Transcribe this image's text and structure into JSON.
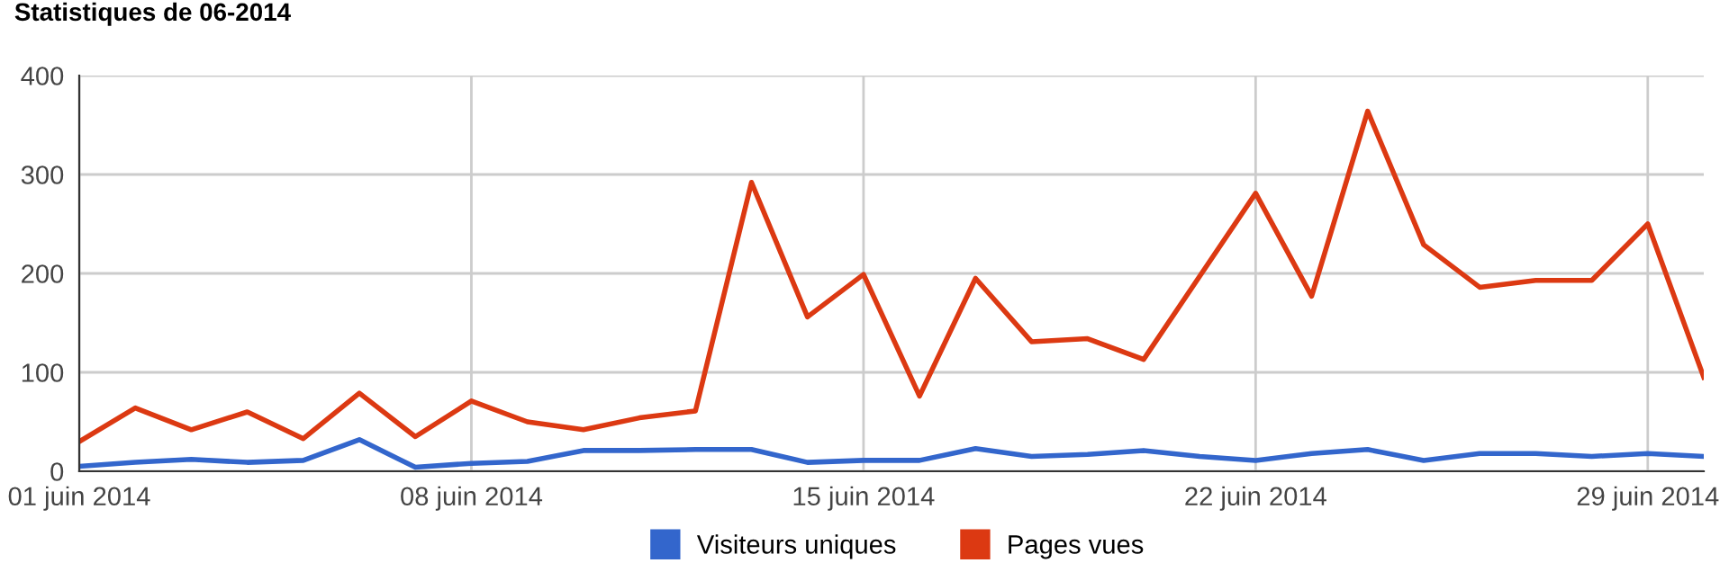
{
  "chart_data": {
    "type": "line",
    "title": "Statistiques de 06-2014",
    "x": [
      "2014-06-01",
      "2014-06-02",
      "2014-06-03",
      "2014-06-04",
      "2014-06-05",
      "2014-06-06",
      "2014-06-07",
      "2014-06-08",
      "2014-06-09",
      "2014-06-10",
      "2014-06-11",
      "2014-06-12",
      "2014-06-13",
      "2014-06-14",
      "2014-06-15",
      "2014-06-16",
      "2014-06-17",
      "2014-06-18",
      "2014-06-19",
      "2014-06-20",
      "2014-06-21",
      "2014-06-22",
      "2014-06-23",
      "2014-06-24",
      "2014-06-25",
      "2014-06-26",
      "2014-06-27",
      "2014-06-28",
      "2014-06-29",
      "2014-06-30"
    ],
    "series": [
      {
        "name": "Visiteurs uniques",
        "color": "#3366cc",
        "values": [
          5,
          9,
          12,
          9,
          11,
          32,
          4,
          8,
          10,
          21,
          21,
          22,
          22,
          9,
          11,
          11,
          23,
          15,
          17,
          21,
          15,
          11,
          18,
          22,
          11,
          18,
          18,
          15,
          18,
          15
        ]
      },
      {
        "name": "Pages vues",
        "color": "#dc3912",
        "values": [
          30,
          64,
          42,
          60,
          33,
          79,
          35,
          71,
          50,
          42,
          54,
          61,
          292,
          156,
          199,
          76,
          195,
          131,
          134,
          113,
          197,
          281,
          177,
          364,
          229,
          186,
          193,
          193,
          250,
          95
        ]
      }
    ],
    "xlim": [
      "2014-06-01",
      "2014-06-30"
    ],
    "xticks": [
      {
        "value": "2014-06-01",
        "label": "01 juin 2014"
      },
      {
        "value": "2014-06-08",
        "label": "08 juin 2014"
      },
      {
        "value": "2014-06-15",
        "label": "15 juin 2014"
      },
      {
        "value": "2014-06-22",
        "label": "22 juin 2014"
      },
      {
        "value": "2014-06-29",
        "label": "29 juin 2014"
      }
    ],
    "ylim": [
      0,
      400
    ],
    "yticks": [
      0,
      100,
      200,
      300,
      400
    ],
    "grid": true,
    "legend": "bottom",
    "marker": "none",
    "line_style": "solid"
  }
}
